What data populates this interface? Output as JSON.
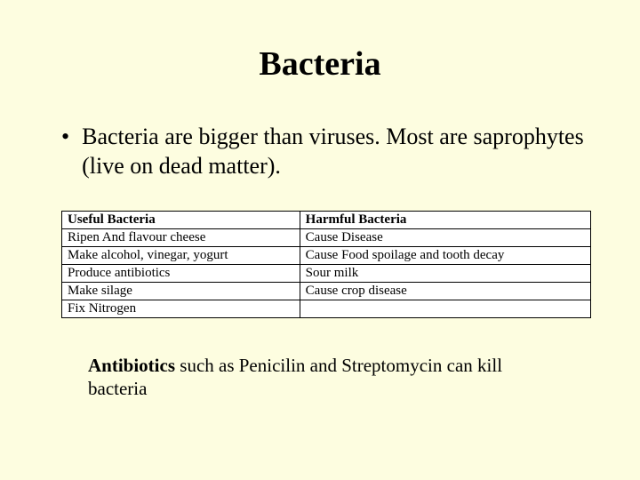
{
  "title": "Bacteria",
  "bullet": {
    "marker": "•",
    "text": "Bacteria are bigger than viruses. Most are saprophytes (live on dead matter)."
  },
  "table": {
    "type": "table",
    "background_color": "#ffffff",
    "border_color": "#000000",
    "font_size": 15,
    "columns": [
      {
        "header": "Useful Bacteria"
      },
      {
        "header": "Harmful Bacteria"
      }
    ],
    "rows": [
      [
        "Ripen And flavour cheese",
        "Cause Disease"
      ],
      [
        "Make alcohol, vinegar, yogurt",
        "Cause Food spoilage and tooth decay"
      ],
      [
        "Produce antibiotics",
        "Sour milk"
      ],
      [
        "Make silage",
        "Cause crop disease"
      ],
      [
        "Fix Nitrogen",
        ""
      ]
    ]
  },
  "footer": {
    "bold_word": "Antibiotics",
    "rest": " such as Penicilin and Streptomycin can kill bacteria"
  },
  "styling": {
    "background_color": "#fdfde0",
    "text_color": "#000000",
    "title_fontsize": 38,
    "bullet_fontsize": 26,
    "footer_fontsize": 21,
    "font_family": "Times New Roman"
  }
}
